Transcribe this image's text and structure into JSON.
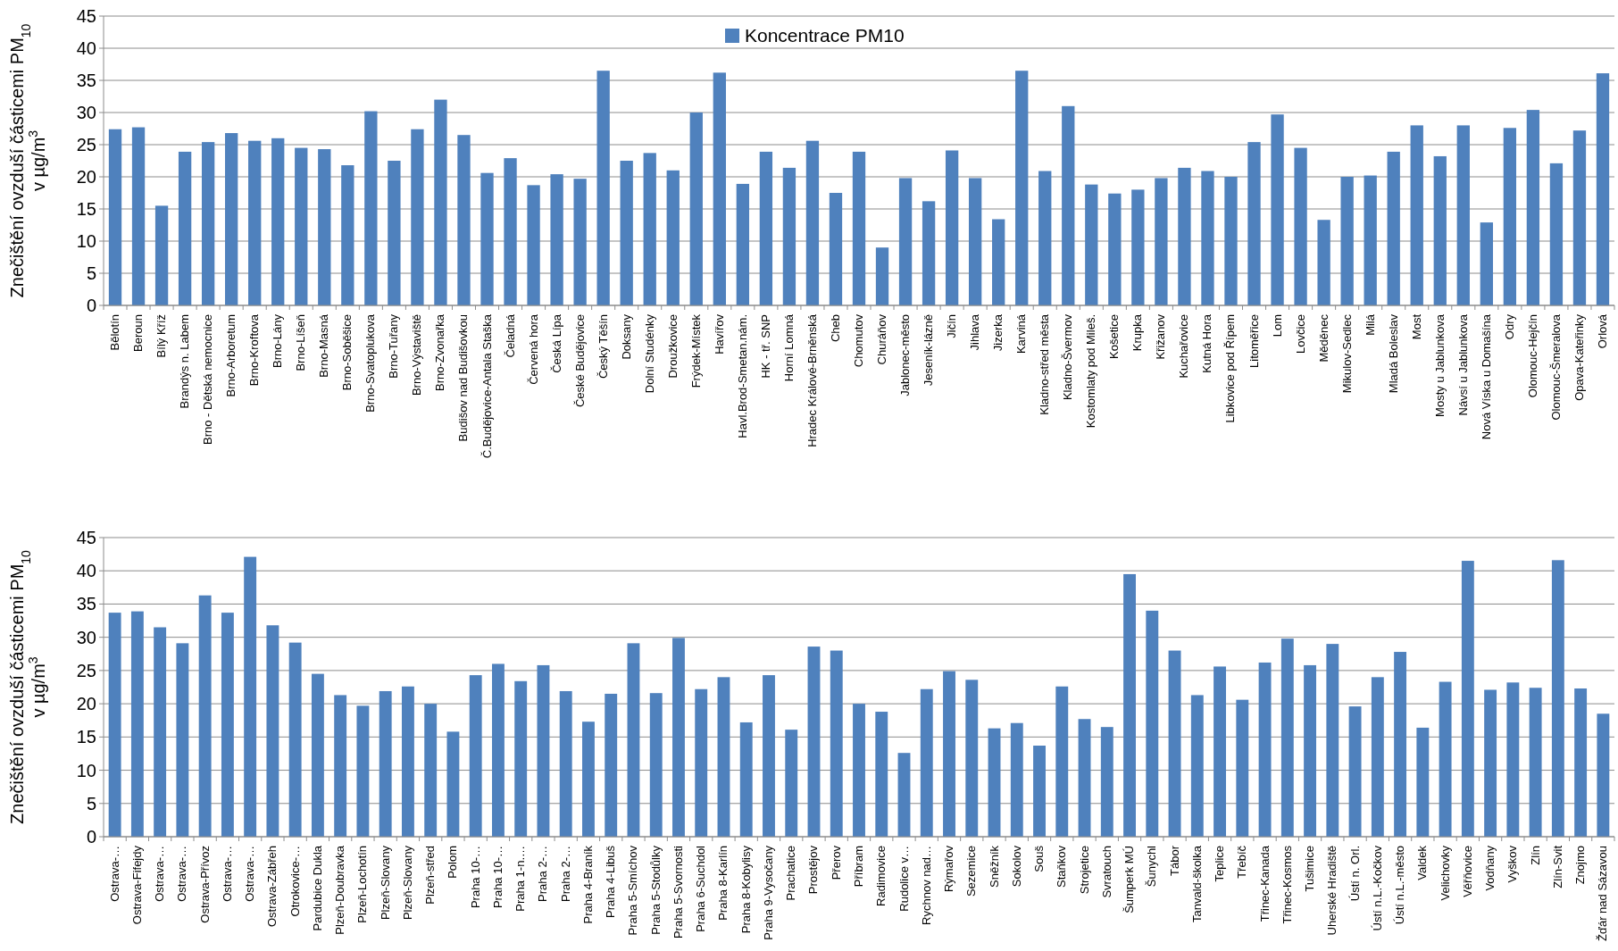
{
  "chart_data": [
    {
      "type": "bar",
      "ylabel": "Znečištění ovzduší částicemi PM$_{10}$\nv µg/m$^{3}$",
      "ylim": [
        0,
        45
      ],
      "yticks": [
        0,
        5,
        10,
        15,
        20,
        25,
        30,
        35,
        40,
        45
      ],
      "grid": "y",
      "legend": "top",
      "categories": [
        "Bělotín",
        "Beroun",
        "Bílý Kříž",
        "Brandýs n. Labem",
        "Brno - Dětská nemocnice",
        "Brno-Arboretum",
        "Brno-Kroftova",
        "Brno-Lány",
        "Brno-Líšeň",
        "Brno-Masná",
        "Brno-Soběšice",
        "Brno-Svatoplukova",
        "Brno-Tuřany",
        "Brno-Výstaviště",
        "Brno-Zvonařka",
        "Budišov nad Budišovkou",
        "Č.Budějovice-Antala Staška",
        "Čeladná",
        "Červená hora",
        "Česká Lípa",
        "České Budějovice",
        "Český Těšín",
        "Doksany",
        "Dolní Studénky",
        "Droužkovice",
        "Frýdek-Místek",
        "Havířov",
        "Havl.Brod-Smetan.nám.",
        "HK - tř. SNP",
        "Horní Lomná",
        "Hradec Králové-Brněnská",
        "Cheb",
        "Chomutov",
        "Churáňov",
        "Jablonec-město",
        "Jeseník-lázně",
        "Jičín",
        "Jihlava",
        "Jizerka",
        "Karviná",
        "Kladno-střed města",
        "Kladno-Švermov",
        "Kostomlaty pod Mileš.",
        "Košetice",
        "Krupka",
        "Křižanov",
        "Kuchařovice",
        "Kutná Hora",
        "Libkovice pod Řípem",
        "Litoměřice",
        "Lom",
        "Lovčice",
        "Měděnec",
        "Mikulov-Sedlec",
        "Milá",
        "Mladá Boleslav",
        "Most",
        "Mosty u Jablunkova",
        "Návsí u Jablunkova",
        "Nová Víska u Domašína",
        "Odry",
        "Olomouc-Hejčín",
        "Olomouc-Šmeralova",
        "Opava-Kateřinky",
        "Orlová"
      ],
      "series": [
        {
          "name": "Koncentrace PM10",
          "color": "#4f81bd",
          "values": [
            27.4,
            27.7,
            15.5,
            23.9,
            25.4,
            26.8,
            25.6,
            26.0,
            24.5,
            24.3,
            21.8,
            30.2,
            22.5,
            27.4,
            32.0,
            26.5,
            20.6,
            22.9,
            18.7,
            20.4,
            19.7,
            36.5,
            22.5,
            23.7,
            21.0,
            30.0,
            36.2,
            18.9,
            23.9,
            21.4,
            25.6,
            17.5,
            23.9,
            9.0,
            19.8,
            16.2,
            24.1,
            19.8,
            13.4,
            36.5,
            20.9,
            31.0,
            18.8,
            17.4,
            18.0,
            19.8,
            21.4,
            20.9,
            20.0,
            25.4,
            29.7,
            24.5,
            13.3,
            20.0,
            20.2,
            23.9,
            28.0,
            23.2,
            28.0,
            12.9,
            27.6,
            30.4,
            22.1,
            27.2,
            36.1
          ]
        }
      ]
    },
    {
      "type": "bar",
      "ylabel": "Znečištění ovzduší částicemi PM$_{10}$\nv µg/m$^{3}$",
      "ylim": [
        0,
        45
      ],
      "yticks": [
        0,
        5,
        10,
        15,
        20,
        25,
        30,
        35,
        40,
        45
      ],
      "grid": "y",
      "categories": [
        "Ostrava-…",
        "Ostrava-Fifejdy",
        "Ostrava-…",
        "Ostrava-…",
        "Ostrava-Přívoz",
        "Ostrava-…",
        "Ostrava-…",
        "Ostrava-Zábřeh",
        "Otrokovice-…",
        "Pardubice Dukla",
        "Plzeň-Doubravka",
        "Plzeň-Lochotín",
        "Plzeň-Slovany",
        "Plzeň-Slovany",
        "Plzeň-střed",
        "Polom",
        "Praha 10-…",
        "Praha 10-…",
        "Praha 1-n.…",
        "Praha 2-…",
        "Praha 2-…",
        "Praha 4-Braník",
        "Praha 4-Libuš",
        "Praha 5-Smíchov",
        "Praha 5-Stodůlky",
        "Praha 5-Svornosti",
        "Praha 6-Suchdol",
        "Praha 8-Karlín",
        "Praha 8-Kobylisy",
        "Praha 9-Vysočany",
        "Prachatice",
        "Prostějov",
        "Přerov",
        "Příbram",
        "Radimovice",
        "Rudolice v…",
        "Rychnov nad…",
        "Rýmařov",
        "Sezemice",
        "Sněžník",
        "Sokolov",
        "Souš",
        "Staňkov",
        "Strojetice",
        "Svratouch",
        "Šumperk MÚ",
        "Šunychl",
        "Tábor",
        "Tanvald-školka",
        "Teplice",
        "Třebíč",
        "Třinec-Kanada",
        "Třinec-Kosmos",
        "Tušimice",
        "Uherské Hradiště",
        "Ústí n. Orl.",
        "Ústí n.L.-Kočkov",
        "Ústí n.L.-město",
        "Valdek",
        "Velichovky",
        "Věřňovice",
        "Vodňany",
        "Vyškov",
        "Zlín",
        "Zlín-Svit",
        "Znojmo",
        "Žďár nad Sázavou"
      ],
      "series": [
        {
          "color": "#4f81bd",
          "values": [
            33.7,
            33.9,
            31.5,
            29.1,
            36.3,
            33.7,
            42.1,
            31.8,
            29.2,
            24.5,
            21.3,
            19.7,
            21.9,
            22.6,
            20.0,
            15.8,
            24.3,
            26.0,
            23.4,
            25.8,
            21.9,
            17.3,
            21.5,
            29.1,
            21.6,
            29.9,
            22.2,
            24.0,
            17.2,
            24.3,
            16.1,
            28.6,
            28.0,
            20.0,
            18.8,
            12.6,
            22.2,
            24.9,
            23.6,
            16.3,
            17.1,
            13.7,
            22.6,
            17.7,
            16.5,
            39.5,
            34.0,
            28.0,
            21.3,
            25.6,
            20.6,
            26.2,
            29.8,
            25.8,
            29.0,
            19.6,
            24.0,
            27.8,
            16.4,
            23.3,
            41.5,
            22.1,
            23.2,
            22.4,
            41.6,
            22.3,
            18.5
          ]
        }
      ]
    }
  ]
}
